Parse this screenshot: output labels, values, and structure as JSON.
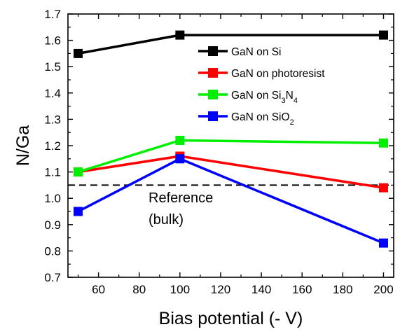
{
  "chart_data": {
    "type": "line",
    "xlabel": "Bias potential (- V)",
    "ylabel": "N/Ga",
    "xlim": [
      45,
      205
    ],
    "ylim": [
      0.7,
      1.7
    ],
    "x_ticks": [
      60,
      80,
      100,
      120,
      140,
      160,
      180,
      200
    ],
    "y_ticks": [
      0.7,
      0.8,
      0.9,
      1.0,
      1.1,
      1.2,
      1.3,
      1.4,
      1.5,
      1.6,
      1.7
    ],
    "x_tick_labels": [
      "60",
      "80",
      "100",
      "120",
      "140",
      "160",
      "180",
      "200"
    ],
    "y_tick_labels": [
      "0.7",
      "0.8",
      "0.9",
      "1.0",
      "1.1",
      "1.2",
      "1.3",
      "1.4",
      "1.5",
      "1.6",
      "1.7"
    ],
    "x": [
      50,
      100,
      200
    ],
    "series": [
      {
        "name": "GaN on Si",
        "label_parts": [
          {
            "t": "GaN on Si"
          }
        ],
        "color": "#000000",
        "values": [
          1.55,
          1.62,
          1.62
        ]
      },
      {
        "name": "GaN on photoresist",
        "label_parts": [
          {
            "t": "GaN on photoresist"
          }
        ],
        "color": "#ff0000",
        "values": [
          1.1,
          1.16,
          1.04
        ]
      },
      {
        "name": "GaN on Si3N4",
        "label_parts": [
          {
            "t": "GaN on Si"
          },
          {
            "t": "3",
            "sub": true
          },
          {
            "t": "N"
          },
          {
            "t": "4",
            "sub": true
          }
        ],
        "color": "#00ee00",
        "values": [
          1.1,
          1.22,
          1.21
        ]
      },
      {
        "name": "GaN on SiO2",
        "label_parts": [
          {
            "t": "GaN on SiO"
          },
          {
            "t": "2",
            "sub": true
          }
        ],
        "color": "#0000ff",
        "values": [
          0.95,
          1.15,
          0.83
        ]
      }
    ],
    "reference": {
      "value": 1.05,
      "style": "dashed",
      "color": "#000000",
      "label_lines": [
        "Reference",
        "(bulk)"
      ]
    },
    "legend_position": "top-right",
    "grid": false
  }
}
